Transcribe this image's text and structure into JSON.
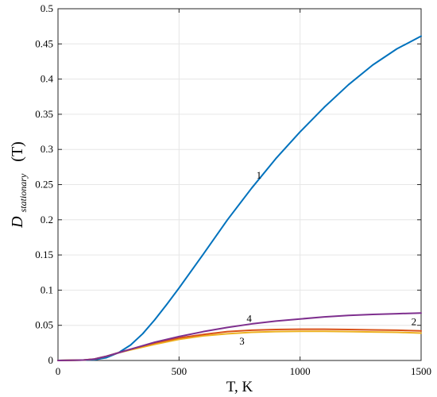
{
  "chart_data": {
    "type": "line",
    "title": "",
    "xlabel": "T, K",
    "ylabel": {
      "main": "D",
      "subscript": "stationary",
      "suffix": "(T)"
    },
    "xlim": [
      0,
      1500
    ],
    "ylim": [
      0,
      0.5
    ],
    "xticks": [
      0,
      500,
      1000,
      1500
    ],
    "yticks": [
      0,
      0.05,
      0.1,
      0.15,
      0.2,
      0.25,
      0.3,
      0.35,
      0.4,
      0.45,
      0.5
    ],
    "grid": true,
    "legend": "none",
    "series": [
      {
        "name": "1",
        "color": "#0072BD",
        "x": [
          0,
          100,
          150,
          200,
          250,
          300,
          350,
          400,
          450,
          500,
          600,
          700,
          800,
          900,
          1000,
          1100,
          1200,
          1300,
          1400,
          1500
        ],
        "y": [
          0,
          0.0005,
          0.001,
          0.004,
          0.011,
          0.022,
          0.038,
          0.058,
          0.08,
          0.103,
          0.151,
          0.2,
          0.245,
          0.287,
          0.325,
          0.36,
          0.392,
          0.42,
          0.443,
          0.461
        ]
      },
      {
        "name": "2",
        "color": "#D95319",
        "x": [
          0,
          100,
          150,
          200,
          250,
          300,
          400,
          500,
          600,
          700,
          800,
          900,
          1000,
          1100,
          1200,
          1300,
          1400,
          1500
        ],
        "y": [
          0,
          0.0005,
          0.002,
          0.006,
          0.011,
          0.016,
          0.025,
          0.032,
          0.037,
          0.041,
          0.043,
          0.044,
          0.0445,
          0.0445,
          0.044,
          0.0435,
          0.043,
          0.042
        ]
      },
      {
        "name": "3",
        "color": "#EDB120",
        "x": [
          0,
          100,
          150,
          200,
          250,
          300,
          400,
          500,
          600,
          700,
          800,
          900,
          1000,
          1100,
          1200,
          1300,
          1400,
          1500
        ],
        "y": [
          0,
          0.0005,
          0.002,
          0.006,
          0.011,
          0.015,
          0.023,
          0.03,
          0.035,
          0.038,
          0.04,
          0.041,
          0.0415,
          0.0415,
          0.041,
          0.0405,
          0.04,
          0.039
        ]
      },
      {
        "name": "4",
        "color": "#7E2F8E",
        "x": [
          0,
          100,
          150,
          200,
          250,
          300,
          400,
          500,
          600,
          700,
          800,
          900,
          1000,
          1100,
          1200,
          1300,
          1400,
          1500
        ],
        "y": [
          0,
          0.0005,
          0.002,
          0.006,
          0.011,
          0.016,
          0.026,
          0.034,
          0.041,
          0.047,
          0.052,
          0.056,
          0.059,
          0.062,
          0.064,
          0.0655,
          0.0665,
          0.0675
        ]
      }
    ],
    "annotations": [
      {
        "text": "1",
        "x": 830,
        "y": 0.263
      },
      {
        "text": "2",
        "x": 1470,
        "y": 0.055
      },
      {
        "text": "3",
        "x": 760,
        "y": 0.027
      },
      {
        "text": "4",
        "x": 790,
        "y": 0.059
      }
    ]
  }
}
